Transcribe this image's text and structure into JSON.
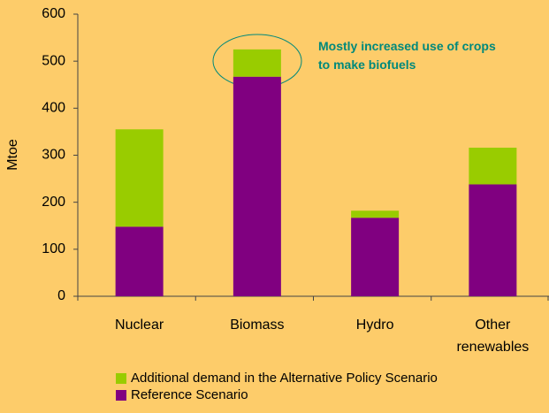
{
  "chart_data": {
    "type": "stacked_bar",
    "y_label": "Mtoe",
    "annotation": "Mostly increased use of crops to make biofuels",
    "categories": [
      "Nuclear",
      "Biomass",
      "Hydro",
      "Other renewables"
    ],
    "series": [
      {
        "name": "Reference Scenario",
        "color": "#800080",
        "values": [
          148,
          467,
          167,
          238
        ]
      },
      {
        "name": "Additional demand in the Alternative Policy Scenario",
        "color": "#99cc00",
        "values": [
          207,
          58,
          15,
          78
        ]
      }
    ],
    "ylim": [
      0,
      600
    ],
    "yticks": [
      0,
      100,
      200,
      300,
      400,
      500,
      600
    ]
  }
}
